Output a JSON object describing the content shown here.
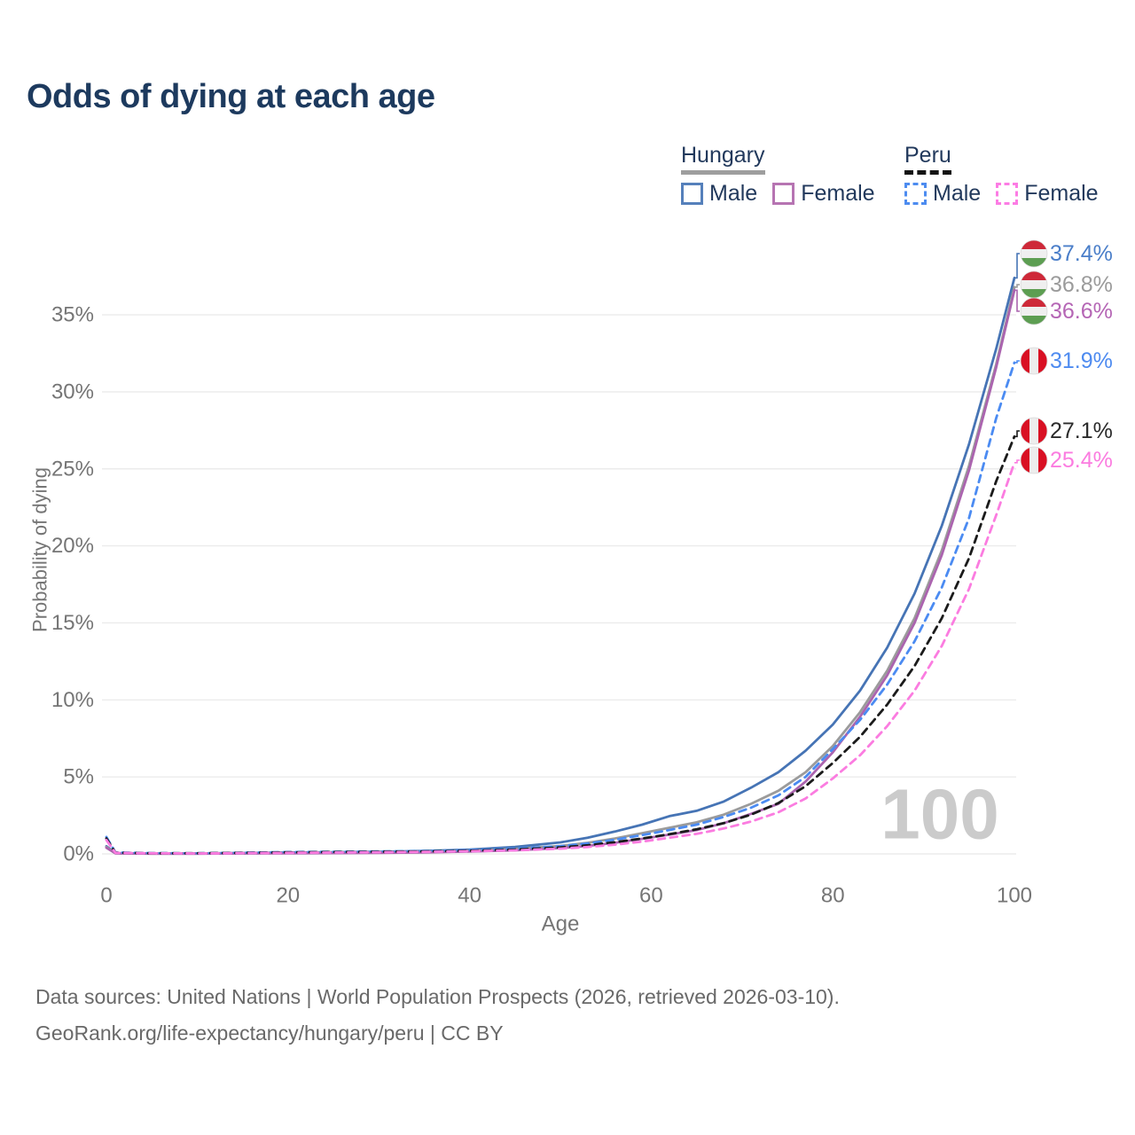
{
  "title": "Odds of dying at each age",
  "legend": {
    "groups": [
      {
        "country": "Hungary",
        "items": [
          {
            "label": "Male"
          },
          {
            "label": "Female"
          }
        ]
      },
      {
        "country": "Peru",
        "items": [
          {
            "label": "Male"
          },
          {
            "label": "Female"
          }
        ]
      }
    ]
  },
  "watermark_age": "100",
  "footer": {
    "line1": "Data sources: United Nations | World Population Prospects (2026, retrieved 2026-03-10).",
    "line2": "GeoRank.org/life-expectancy/hungary/peru | CC BY"
  },
  "colors": {
    "title_text": "#1d3a5e",
    "axis_text": "#757575",
    "grid": "#ebebeb",
    "watermark": "#cbcbcb",
    "hungary_flag": [
      "#ce2939",
      "#efefef",
      "#5d9e52"
    ],
    "peru_flag": [
      "#d91023",
      "#ededed",
      "#d91023"
    ]
  },
  "chart_data": {
    "type": "line",
    "title": "Odds of dying at each age",
    "xlabel": "Age",
    "ylabel": "Probability of dying",
    "xlim": [
      0,
      100
    ],
    "ylim": [
      0,
      38
    ],
    "x_ticks": [
      0,
      20,
      40,
      60,
      80,
      100
    ],
    "y_ticks": [
      0,
      5,
      10,
      15,
      20,
      25,
      30,
      35
    ],
    "y_tick_suffix": "%",
    "grid": "horizontal-only",
    "legend_position": "top-right",
    "x": [
      0,
      1,
      5,
      10,
      15,
      20,
      25,
      30,
      35,
      40,
      45,
      50,
      53,
      56,
      59,
      62,
      65,
      68,
      71,
      74,
      77,
      80,
      83,
      86,
      89,
      92,
      95,
      98,
      100
    ],
    "series": [
      {
        "name": "Hungary Male",
        "country": "Hungary",
        "sex": "Male",
        "style": "solid",
        "color": "#4674b5",
        "label_color": "#4a7ec9",
        "end_label": "37.4%",
        "end_value": 37.4,
        "flag": "hungary",
        "values": [
          0.5,
          0.05,
          0.03,
          0.03,
          0.06,
          0.09,
          0.11,
          0.14,
          0.19,
          0.28,
          0.45,
          0.75,
          1.05,
          1.45,
          1.9,
          2.45,
          2.8,
          3.4,
          4.3,
          5.3,
          6.7,
          8.4,
          10.6,
          13.4,
          16.9,
          21.3,
          26.6,
          32.8,
          37.4
        ]
      },
      {
        "name": "Hungary",
        "country": "Hungary",
        "sex": "Both",
        "style": "solid",
        "color": "#9b9b9b",
        "label_color": "#9b9b9b",
        "end_label": "36.8%",
        "end_value": 36.8,
        "flag": "hungary",
        "values": [
          0.45,
          0.04,
          0.02,
          0.02,
          0.04,
          0.06,
          0.08,
          0.1,
          0.14,
          0.2,
          0.32,
          0.52,
          0.72,
          1.0,
          1.35,
          1.7,
          2.05,
          2.55,
          3.25,
          4.1,
          5.3,
          7.0,
          9.2,
          11.9,
          15.3,
          19.7,
          25.2,
          31.8,
          36.8
        ]
      },
      {
        "name": "Hungary Female",
        "country": "Hungary",
        "sex": "Female",
        "style": "solid",
        "color": "#ab64af",
        "label_color": "#b566b5",
        "end_label": "36.6%",
        "end_value": 36.6,
        "flag": "hungary",
        "values": [
          0.4,
          0.04,
          0.02,
          0.02,
          0.03,
          0.04,
          0.05,
          0.07,
          0.1,
          0.15,
          0.23,
          0.38,
          0.52,
          0.72,
          0.98,
          1.25,
          1.55,
          2.0,
          2.6,
          3.25,
          4.7,
          6.6,
          8.9,
          11.6,
          15.0,
          19.4,
          24.9,
          31.6,
          36.6
        ]
      },
      {
        "name": "Peru Male",
        "country": "Peru",
        "sex": "Male",
        "style": "dashed",
        "color": "#4b8bf2",
        "label_color": "#4e8bf0",
        "end_label": "31.9%",
        "end_value": 31.9,
        "flag": "peru",
        "values": [
          1.1,
          0.09,
          0.05,
          0.04,
          0.08,
          0.12,
          0.14,
          0.16,
          0.19,
          0.24,
          0.34,
          0.5,
          0.68,
          0.92,
          1.22,
          1.55,
          1.9,
          2.4,
          3.0,
          3.8,
          5.0,
          6.8,
          8.7,
          11.0,
          13.8,
          17.3,
          21.8,
          28.3,
          31.9
        ]
      },
      {
        "name": "Peru",
        "country": "Peru",
        "sex": "Both",
        "style": "dashed",
        "color": "#1b1b1b",
        "label_color": "#2b2b2b",
        "end_label": "27.1%",
        "end_value": 27.1,
        "flag": "peru",
        "values": [
          1.0,
          0.08,
          0.04,
          0.04,
          0.07,
          0.1,
          0.12,
          0.14,
          0.16,
          0.2,
          0.28,
          0.42,
          0.56,
          0.76,
          1.0,
          1.28,
          1.6,
          2.0,
          2.55,
          3.3,
          4.4,
          5.9,
          7.6,
          9.7,
          12.2,
          15.3,
          19.2,
          24.2,
          27.1
        ]
      },
      {
        "name": "Peru Female",
        "country": "Peru",
        "sex": "Female",
        "style": "dashed",
        "color": "#fb7ce0",
        "label_color": "#fb7ce0",
        "end_label": "25.4%",
        "end_value": 25.4,
        "flag": "peru",
        "values": [
          0.9,
          0.07,
          0.04,
          0.03,
          0.05,
          0.07,
          0.09,
          0.11,
          0.13,
          0.17,
          0.23,
          0.34,
          0.45,
          0.6,
          0.8,
          1.05,
          1.3,
          1.65,
          2.1,
          2.7,
          3.6,
          4.9,
          6.4,
          8.3,
          10.6,
          13.5,
          17.2,
          22.0,
          25.4
        ]
      }
    ]
  }
}
